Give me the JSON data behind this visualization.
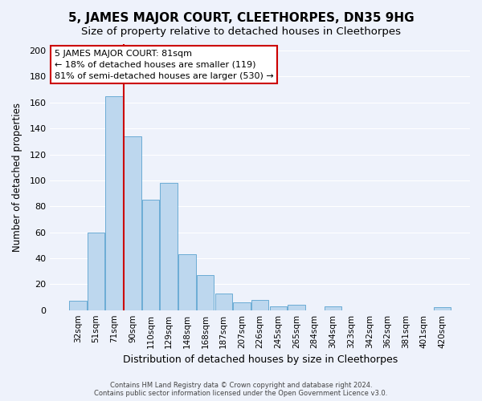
{
  "title": "5, JAMES MAJOR COURT, CLEETHORPES, DN35 9HG",
  "subtitle": "Size of property relative to detached houses in Cleethorpes",
  "xlabel": "Distribution of detached houses by size in Cleethorpes",
  "ylabel": "Number of detached properties",
  "bar_labels": [
    "32sqm",
    "51sqm",
    "71sqm",
    "90sqm",
    "110sqm",
    "129sqm",
    "148sqm",
    "168sqm",
    "187sqm",
    "207sqm",
    "226sqm",
    "245sqm",
    "265sqm",
    "284sqm",
    "304sqm",
    "323sqm",
    "342sqm",
    "362sqm",
    "381sqm",
    "401sqm",
    "420sqm"
  ],
  "bar_values": [
    7,
    60,
    165,
    134,
    85,
    98,
    43,
    27,
    13,
    6,
    8,
    3,
    4,
    0,
    3,
    0,
    0,
    0,
    0,
    0,
    2
  ],
  "bar_color": "#bdd7ee",
  "bar_edge_color": "#5ba3d0",
  "vline_x_index": 2,
  "vline_color": "#cc0000",
  "annotation_line1": "5 JAMES MAJOR COURT: 81sqm",
  "annotation_line2": "← 18% of detached houses are smaller (119)",
  "annotation_line3": "81% of semi-detached houses are larger (530) →",
  "annotation_box_color": "#ffffff",
  "annotation_box_edge": "#cc0000",
  "ylim": [
    0,
    205
  ],
  "yticks": [
    0,
    20,
    40,
    60,
    80,
    100,
    120,
    140,
    160,
    180,
    200
  ],
  "footer1": "Contains HM Land Registry data © Crown copyright and database right 2024.",
  "footer2": "Contains public sector information licensed under the Open Government Licence v3.0.",
  "bg_color": "#eef2fb",
  "grid_color": "#ffffff",
  "title_fontsize": 11,
  "subtitle_fontsize": 9.5,
  "ylabel_fontsize": 8.5,
  "xlabel_fontsize": 9
}
